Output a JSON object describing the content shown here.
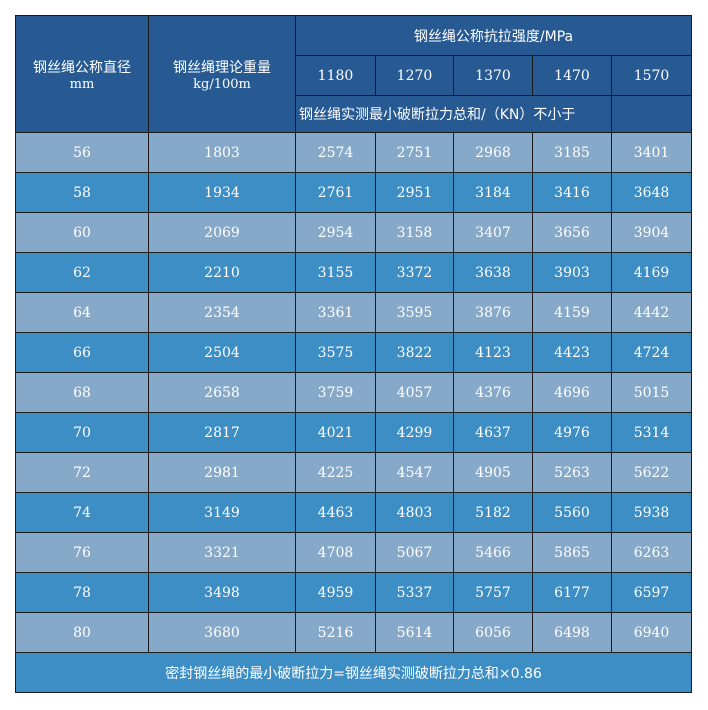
{
  "header": {
    "diameter_label": "钢丝绳公称直径",
    "diameter_unit": "mm",
    "weight_label": "钢丝绳理论重量",
    "weight_unit": "kg/100m",
    "strength_label": "钢丝绳公称抗拉强度/MPa",
    "strengths": [
      "1180",
      "1270",
      "1370",
      "1470",
      "1570"
    ],
    "breaking_force_label": "钢丝绳实测最小破断拉力总和/（KN）不小于"
  },
  "rows": [
    [
      "56",
      "1803",
      "2574",
      "2751",
      "2968",
      "3185",
      "3401"
    ],
    [
      "58",
      "1934",
      "2761",
      "2951",
      "3184",
      "3416",
      "3648"
    ],
    [
      "60",
      "2069",
      "2954",
      "3158",
      "3407",
      "3656",
      "3904"
    ],
    [
      "62",
      "2210",
      "3155",
      "3372",
      "3638",
      "3903",
      "4169"
    ],
    [
      "64",
      "2354",
      "3361",
      "3595",
      "3876",
      "4159",
      "4442"
    ],
    [
      "66",
      "2504",
      "3575",
      "3822",
      "4123",
      "4423",
      "4724"
    ],
    [
      "68",
      "2658",
      "3759",
      "4057",
      "4376",
      "4696",
      "5015"
    ],
    [
      "70",
      "2817",
      "4021",
      "4299",
      "4637",
      "4976",
      "5314"
    ],
    [
      "72",
      "2981",
      "4225",
      "4547",
      "4905",
      "5263",
      "5622"
    ],
    [
      "74",
      "3149",
      "4463",
      "4803",
      "5182",
      "5560",
      "5938"
    ],
    [
      "76",
      "3321",
      "4708",
      "5067",
      "5466",
      "5865",
      "6263"
    ],
    [
      "78",
      "3498",
      "4959",
      "5337",
      "5757",
      "6177",
      "6597"
    ],
    [
      "80",
      "3680",
      "5216",
      "5614",
      "6056",
      "6498",
      "6940"
    ]
  ],
  "footer": "密封钢丝绳的最小破断拉力=钢丝绳实测破断拉力总和×0.86",
  "colors": {
    "header": "#275a93",
    "row_light": "#87a9c9",
    "row_dark": "#3d8ec4"
  }
}
